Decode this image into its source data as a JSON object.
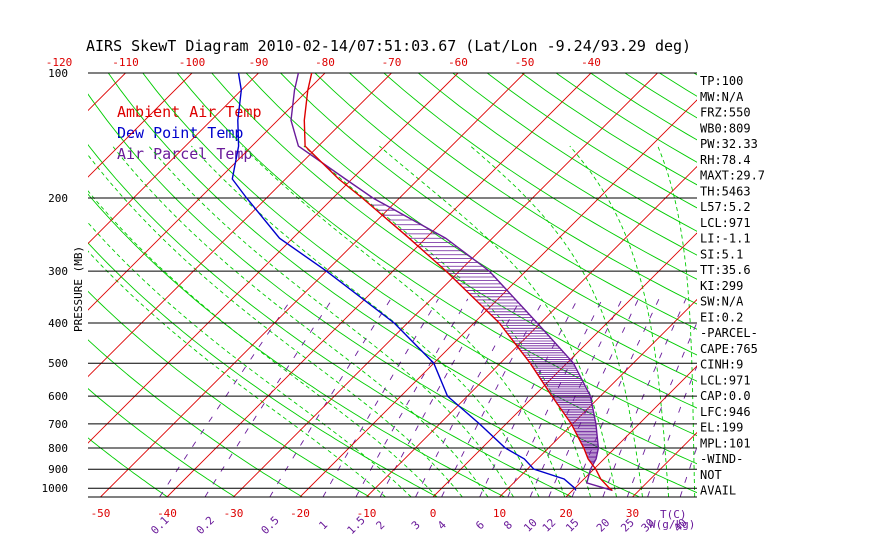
{
  "chart_data": {
    "type": "line",
    "title": "AIRS SkewT Diagram 2010-02-14/07:51:03.67 (Lat/Lon -9.24/93.29 deg)",
    "ylabel": "PRESSURE (MB)",
    "xlabel_temp": "T(C)",
    "xlabel_mix": "W(g/kg)",
    "pressure_ticks": [
      "100",
      "200",
      "300",
      "400",
      "500",
      "600",
      "700",
      "800",
      "900",
      "1000"
    ],
    "pressure_values": [
      100,
      200,
      300,
      400,
      500,
      600,
      700,
      800,
      900,
      1000
    ],
    "bottom_temp_ticks": [
      "-50",
      "-40",
      "-30",
      "-20",
      "-10",
      "0",
      "10",
      "20",
      "30"
    ],
    "bottom_temp_values": [
      -50,
      -40,
      -30,
      -20,
      -10,
      0,
      10,
      20,
      30
    ],
    "top_temp_ticks": [
      "-120",
      "-110",
      "-100",
      "-90",
      "-80",
      "-70",
      "-60",
      "-50",
      "-40"
    ],
    "top_temp_values": [
      -120,
      -110,
      -100,
      -90,
      -80,
      -70,
      -60,
      -50,
      -40
    ],
    "mixing_ratio_ticks": [
      "0.1",
      "0.2",
      "0.5",
      "1",
      "1.5",
      "2",
      "3",
      "4",
      "6",
      "8",
      "10",
      "12",
      "15",
      "20",
      "25",
      "30",
      "40"
    ],
    "mixing_ratio_values": [
      0.1,
      0.2,
      0.5,
      1,
      1.5,
      2,
      3,
      4,
      6,
      8,
      10,
      12,
      15,
      20,
      25,
      30,
      40
    ],
    "legend": [
      {
        "label": "Ambient Air Temp",
        "color": "#dd0000"
      },
      {
        "label": "Dew Point Temp",
        "color": "#0000cc"
      },
      {
        "label": "Air Parcel Temp",
        "color": "#6a1b9a"
      }
    ],
    "colors": {
      "isobar": "#000000",
      "isotherm": "#dd0000",
      "dry_adiabat": "#00cc00",
      "moist_adiabat": "#00cc00",
      "mixing_ratio": "#6a1b9a",
      "temperature": "#dd0000",
      "dewpoint": "#0000cc",
      "parcel": "#6a1b9a",
      "cape_hatch": "#6a1b9a"
    },
    "series": [
      {
        "name": "Ambient Air Temp",
        "pressure": [
          1013,
          1000,
          950,
          900,
          850,
          800,
          700,
          600,
          500,
          400,
          300,
          250,
          200,
          180,
          150,
          130,
          110,
          100
        ],
        "temperature": [
          26,
          25.2,
          22.5,
          20.3,
          17.6,
          15.3,
          9.8,
          2.7,
          -5.5,
          -16.2,
          -32,
          -42.5,
          -55.6,
          -62,
          -72,
          -76,
          -80,
          -82
        ]
      },
      {
        "name": "Dew Point Temp",
        "pressure": [
          1013,
          1000,
          950,
          900,
          850,
          800,
          700,
          600,
          500,
          400,
          300,
          250,
          200,
          180,
          150,
          130,
          110,
          100
        ],
        "temperature": [
          20.5,
          20,
          17,
          11,
          8,
          3.5,
          -4,
          -13,
          -20,
          -32,
          -50,
          -62,
          -73,
          -78,
          -82,
          -86,
          -90,
          -93
        ]
      },
      {
        "name": "Air Parcel Temp",
        "pressure": [
          1013,
          1000,
          971,
          946,
          900,
          850,
          800,
          700,
          600,
          500,
          400,
          300,
          250,
          200,
          180,
          150,
          130,
          110,
          100
        ],
        "temperature": [
          26,
          24.5,
          21,
          20.5,
          19.5,
          18.8,
          17.5,
          13.5,
          8.5,
          1,
          -10.5,
          -25.5,
          -37,
          -54,
          -61,
          -73,
          -78,
          -82,
          -84
        ]
      }
    ],
    "stats": [
      "TP:100",
      "MW:N/A",
      "FRZ:550",
      "WB0:809",
      "PW:32.33",
      "RH:78.4",
      "MAXT:29.7",
      "TH:5463",
      "L57:5.2",
      "LCL:971",
      "LI:-1.1",
      "SI:5.1",
      "TT:35.6",
      "KI:299",
      "SW:N/A",
      "EI:0.2",
      "-PARCEL-",
      "CAPE:765",
      "CINH:9",
      "LCL:971",
      "CAP:0.0",
      "LFC:946",
      "EL:199",
      "MPL:101",
      "-WIND-",
      "NOT",
      "AVAIL"
    ]
  }
}
